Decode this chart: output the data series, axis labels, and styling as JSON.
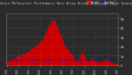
{
  "title": "Solar PV/Inverter Performance West Array Actual & Average Power Output",
  "bg_color": "#2b2b2b",
  "plot_bg_color": "#2b2b2b",
  "border_color": "#666666",
  "bar_color": "#cc0000",
  "avg_line_color": "#0000cc",
  "grid_color": "#888888",
  "text_color": "#cccccc",
  "title_color": "#cccccc",
  "ylim": [
    0,
    5.5
  ],
  "ytick_labels": [
    "0",
    "1k",
    "2k",
    "3k",
    "4k",
    "5k"
  ],
  "ytick_vals": [
    0,
    1,
    2,
    3,
    4,
    5
  ],
  "avg_value": 0.55,
  "legend_actual_color": "#ff0000",
  "legend_avg_color": "#0000ff",
  "bar_values": [
    0.3,
    0.4,
    0.5,
    0.4,
    0.5,
    0.6,
    0.5,
    0.6,
    0.7,
    0.6,
    0.7,
    0.8,
    0.7,
    0.8,
    0.9,
    0.8,
    0.9,
    1.0,
    0.9,
    1.0,
    1.1,
    1.0,
    1.1,
    1.2,
    1.1,
    1.2,
    1.3,
    1.2,
    1.3,
    1.4,
    1.3,
    1.5,
    1.6,
    1.5,
    1.7,
    1.8,
    1.7,
    1.9,
    2.0,
    1.9,
    2.1,
    2.2,
    2.1,
    2.3,
    2.4,
    2.3,
    2.5,
    2.6,
    2.5,
    2.7,
    2.8,
    3.0,
    3.2,
    3.4,
    3.6,
    3.8,
    4.0,
    4.2,
    4.4,
    4.3,
    4.5,
    4.6,
    4.4,
    4.7,
    4.8,
    4.5,
    4.6,
    4.2,
    4.0,
    4.3,
    3.8,
    3.6,
    3.4,
    3.2,
    3.0,
    2.8,
    2.6,
    2.4,
    2.2,
    2.0,
    1.9,
    1.8,
    1.7,
    1.6,
    1.5,
    1.4,
    1.3,
    1.2,
    1.1,
    1.0,
    0.9,
    0.8,
    0.7,
    0.6,
    0.5,
    0.4,
    0.5,
    0.6,
    0.7,
    0.8,
    1.0,
    1.2,
    1.4,
    1.2,
    1.0,
    0.9,
    0.8,
    0.7,
    0.6,
    0.5,
    0.6,
    0.5,
    0.4,
    0.5,
    0.6,
    0.7,
    0.8,
    0.7,
    0.6,
    0.5,
    0.4,
    0.3,
    0.4,
    0.5,
    0.4,
    0.3,
    0.4,
    0.3,
    0.4,
    0.5,
    0.4,
    0.5,
    0.6,
    0.5,
    0.6,
    0.7,
    0.6,
    0.5,
    0.6,
    0.5,
    0.4,
    0.3,
    0.2,
    0.3,
    0.2,
    0.3,
    0.2,
    0.1,
    0.2,
    0.1
  ],
  "x_tick_positions": [
    0,
    15,
    30,
    45,
    60,
    75,
    90,
    105,
    120,
    135,
    150
  ],
  "x_tick_labels": [
    "01/05",
    "02/05",
    "03/05",
    "04/05",
    "05/05",
    "06/05",
    "07/05",
    "08/05",
    "09/05",
    "10/05",
    "11/05"
  ]
}
